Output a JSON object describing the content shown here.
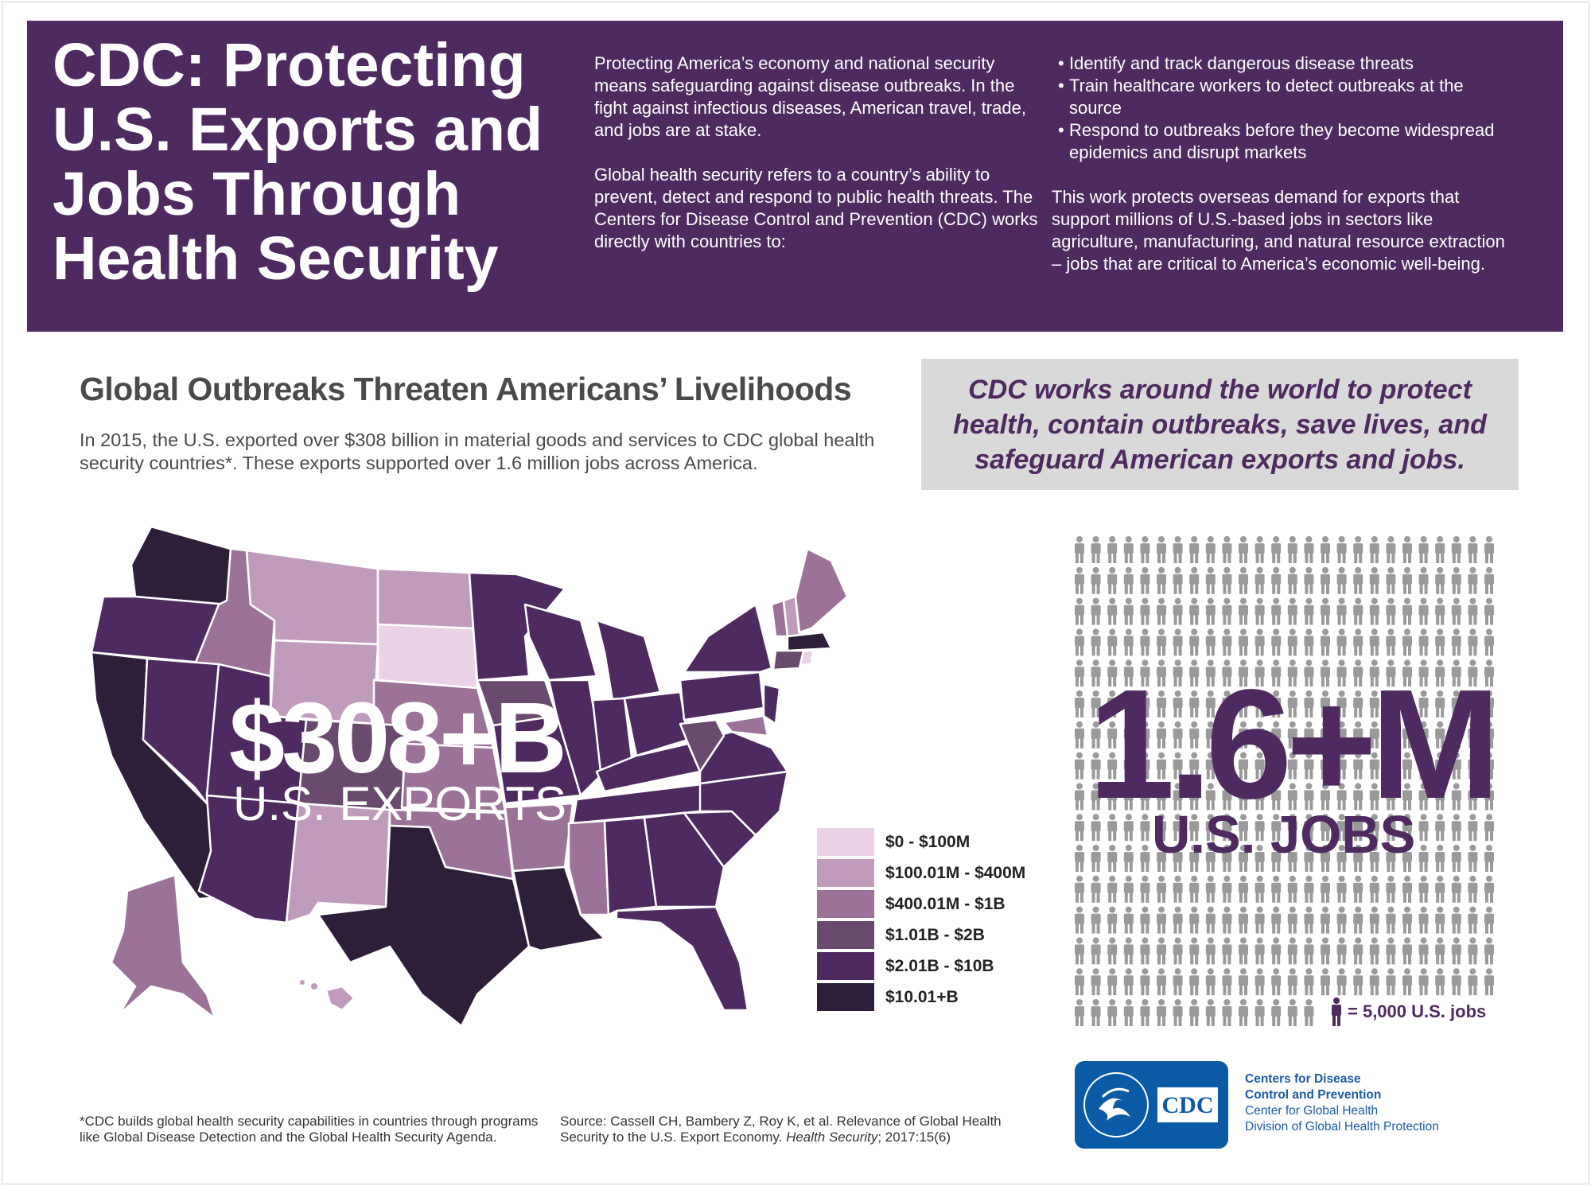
{
  "header": {
    "title": "CDC: Protecting U.S. Exports and Jobs Through Health Security",
    "intro_p1": "Protecting America’s economy and national security means safeguarding against disease outbreaks. In the fight against infectious diseases, American travel, trade, and jobs are at stake.",
    "intro_p2": "Global health security refers to a country’s ability to prevent, detect and respond to public health threats.  The Centers for Disease Control and Prevention (CDC) works directly with countries to:",
    "bullets": [
      "Identify and track dangerous disease threats",
      "Train healthcare workers to detect outbreaks at the source",
      "Respond to outbreaks before they become widespread epidemics and disrupt markets"
    ],
    "closing": "This work protects overseas demand for exports that support millions of U.S.-based jobs in sectors like agriculture, manufacturing, and natural resource extraction – jobs that are critical to America’s economic well-being."
  },
  "section": {
    "title": "Global Outbreaks Threaten Americans’ Livelihoods",
    "text": "In 2015, the U.S. exported over $308 billion in material goods and services to CDC global health security countries*. These exports supported over 1.6 million jobs across America."
  },
  "callout": "CDC works around the world to protect health, contain outbreaks, save lives, and safeguard American exports and jobs.",
  "map": {
    "value": "$308+B",
    "label": "U.S. EXPORTS",
    "legend": [
      {
        "label": "$0 - $100M",
        "color": "#ecd2e6"
      },
      {
        "label": "$100.01M - $400M",
        "color": "#c19bbb"
      },
      {
        "label": "$400.01M - $1B",
        "color": "#9c7299"
      },
      {
        "label": "$1.01B - $2B",
        "color": "#6a4a6e"
      },
      {
        "label": "$2.01B - $10B",
        "color": "#4e2a60"
      },
      {
        "label": "$10.01+B",
        "color": "#2d1f3a"
      }
    ]
  },
  "jobs": {
    "value": "1.6+M",
    "label": "U.S. JOBS",
    "key": "= 5,000 U.S. jobs"
  },
  "org": {
    "line1": "Centers for Disease",
    "line2": "Control and Prevention",
    "line3": "Center for Global Health",
    "line4": "Division of Global Health Protection",
    "logo_text": "CDC"
  },
  "footnote": "*CDC builds global health security capabilities in countries through programs like Global Disease Detection and the Global Health Security Agenda.",
  "source": {
    "text": "Source: Cassell CH, Bambery Z, Roy K, et al. Relevance of Global Health Security to the U.S. Export Economy. ",
    "journal": "Health Security",
    "cite": "; 2017:15(6)"
  }
}
